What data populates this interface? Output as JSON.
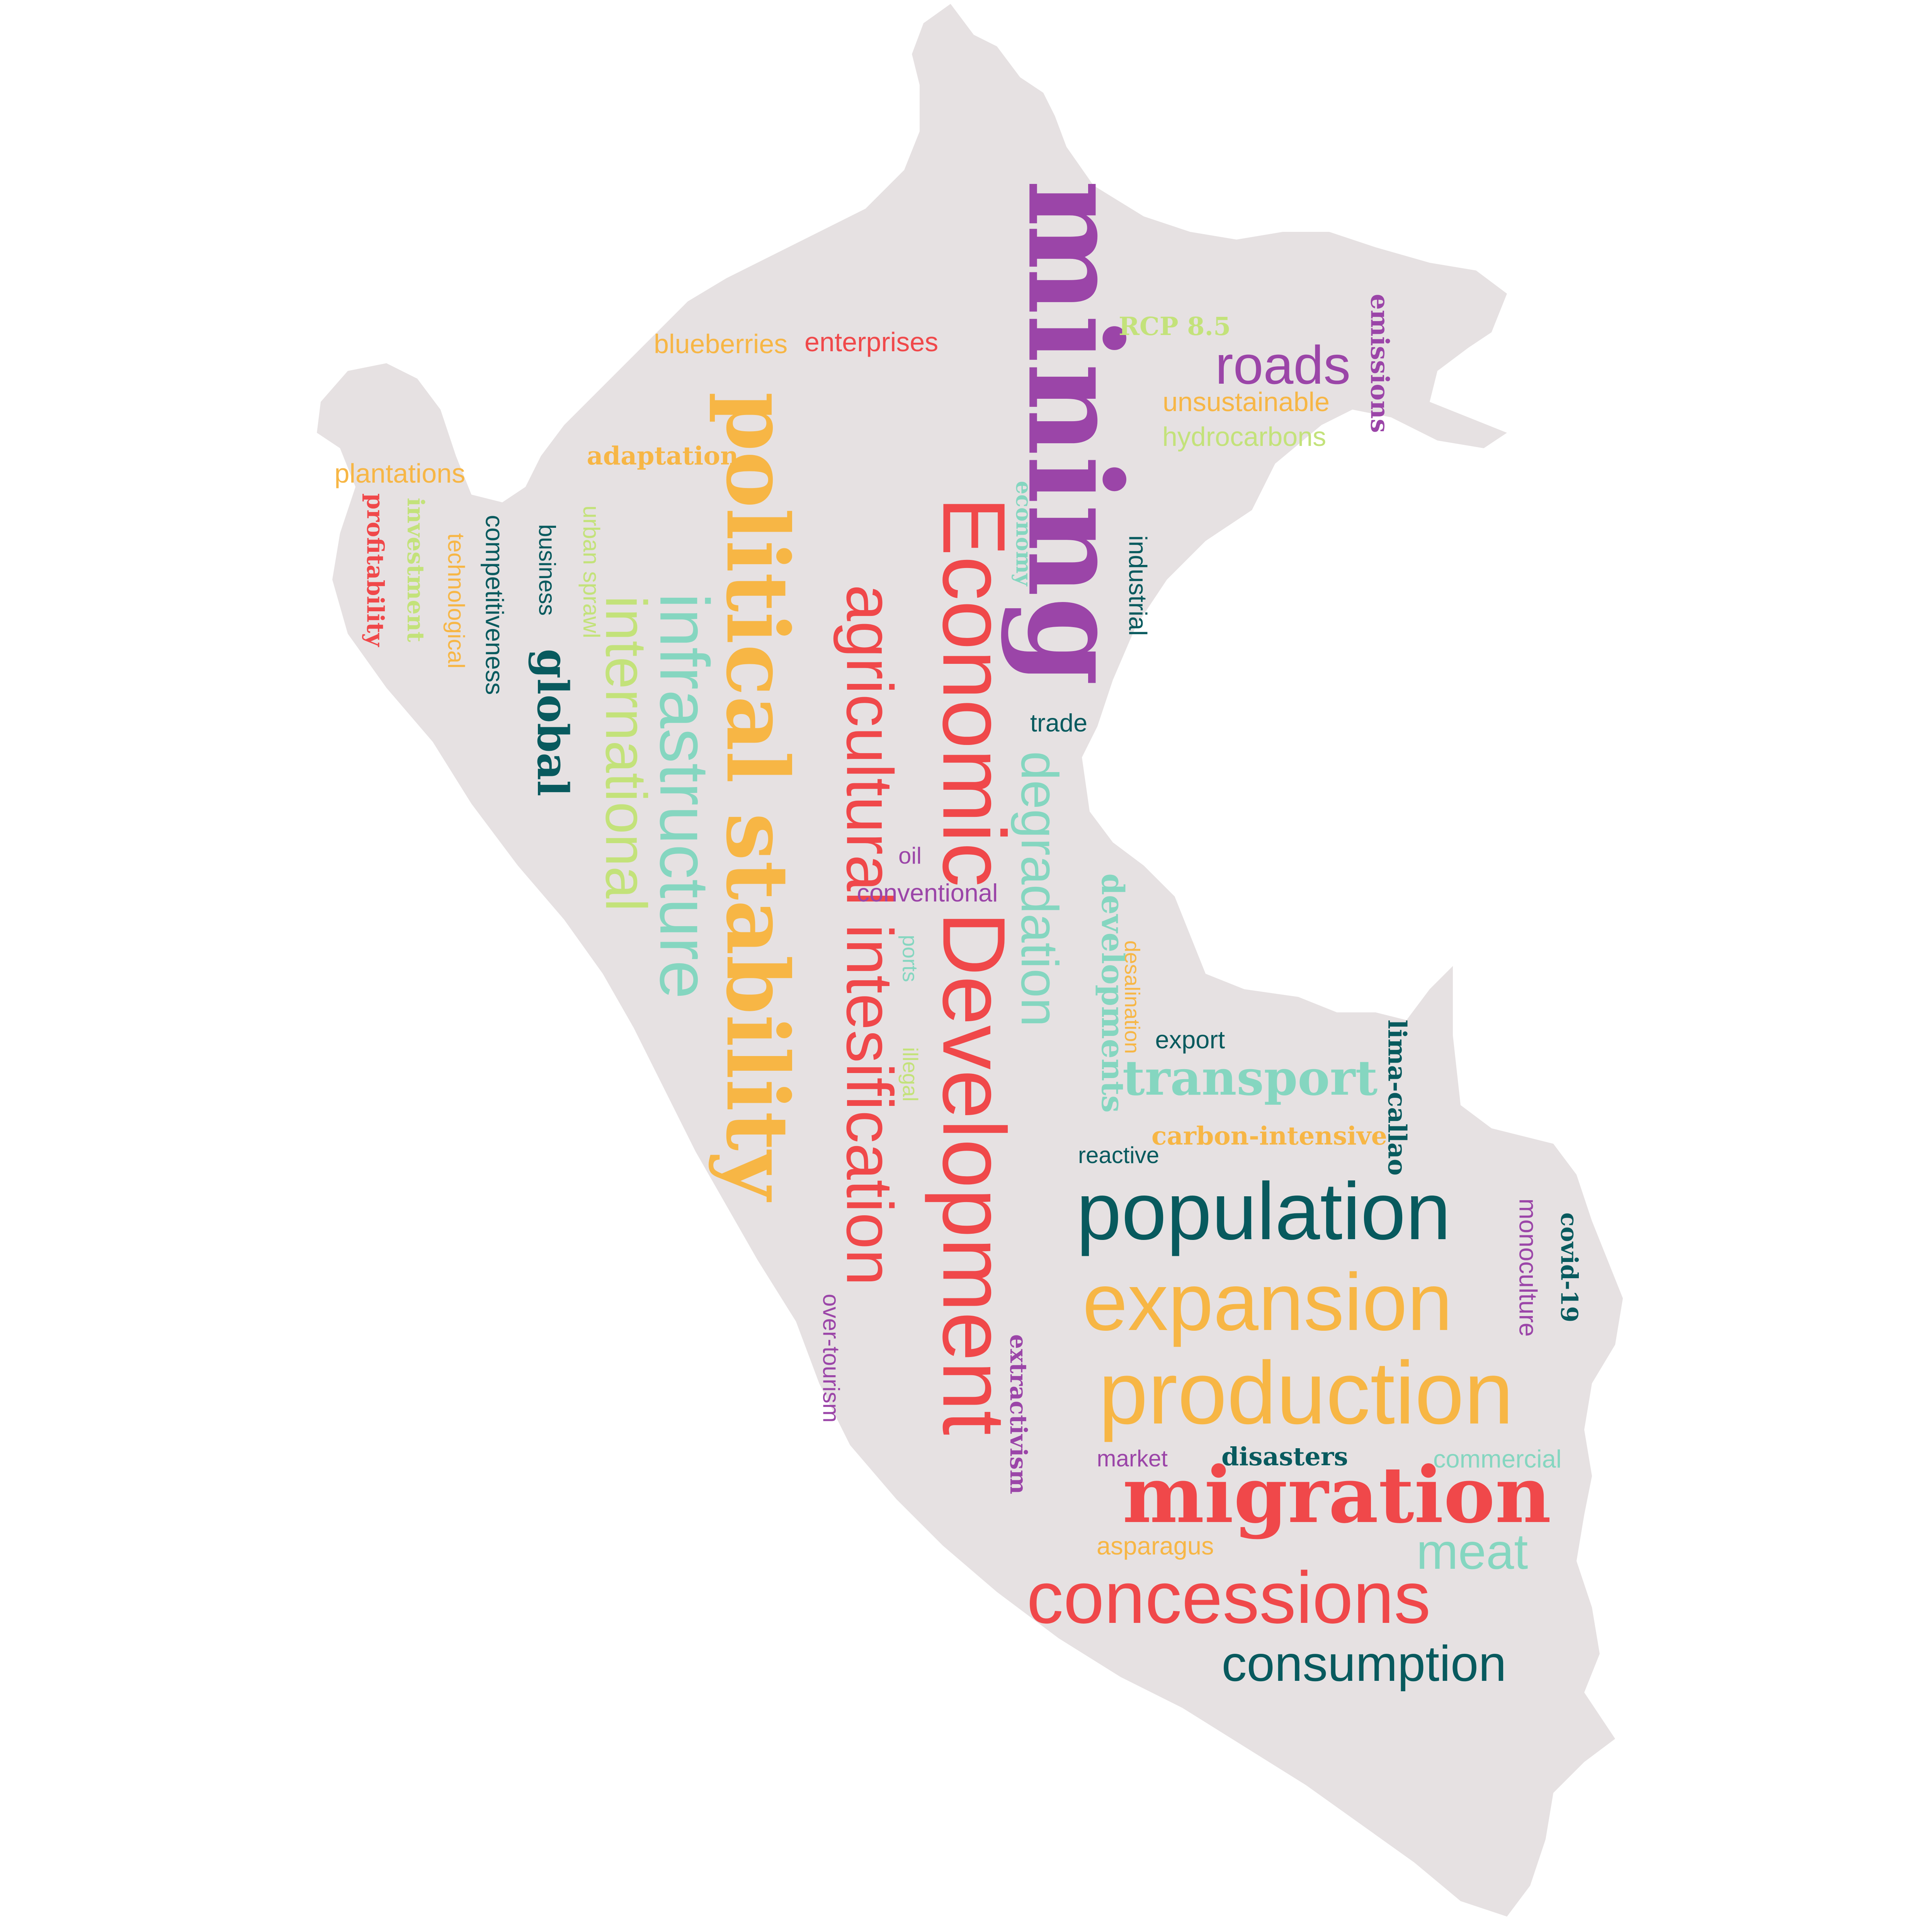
{
  "colors": {
    "background": "#ffffff",
    "map": "#e6e1e2",
    "purple": "#9b45a8",
    "red": "#f0484a",
    "orange": "#f7b645",
    "teal": "#085a5e",
    "mint": "#85d6c0",
    "lime": "#c3e27a"
  },
  "words": [
    {
      "text": "mining",
      "color": "purple",
      "font": "serif",
      "weight": 3
    },
    {
      "text": "Economic Development",
      "color": "red",
      "font": "sans",
      "weight": 2
    },
    {
      "text": "political stability",
      "color": "orange",
      "font": "serif",
      "weight": 2
    },
    {
      "text": "infrastructure",
      "color": "mint",
      "font": "sans",
      "weight": 2
    },
    {
      "text": "agricultural intesification",
      "color": "red",
      "font": "sans",
      "weight": 2
    },
    {
      "text": "international",
      "color": "lime",
      "font": "sans",
      "weight": 2
    },
    {
      "text": "roads",
      "color": "purple",
      "font": "sans",
      "weight": 1
    },
    {
      "text": "degradation",
      "color": "mint",
      "font": "sans",
      "weight": 1
    },
    {
      "text": "developments",
      "color": "mint",
      "font": "serif",
      "weight": 1
    },
    {
      "text": "population",
      "color": "teal",
      "font": "sans",
      "weight": 2
    },
    {
      "text": "expansion",
      "color": "orange",
      "font": "sans",
      "weight": 2
    },
    {
      "text": "production",
      "color": "orange",
      "font": "sans",
      "weight": 2
    },
    {
      "text": "migration",
      "color": "red",
      "font": "serif",
      "weight": 2
    },
    {
      "text": "concessions",
      "color": "red",
      "font": "sans",
      "weight": 2
    },
    {
      "text": "consumption",
      "color": "teal",
      "font": "sans",
      "weight": 1
    },
    {
      "text": "meat",
      "color": "mint",
      "font": "sans",
      "weight": 1
    },
    {
      "text": "transport",
      "color": "mint",
      "font": "serif",
      "weight": 1
    },
    {
      "text": "global",
      "color": "teal",
      "font": "serif",
      "weight": 1
    },
    {
      "text": "blueberries",
      "color": "orange",
      "font": "sans",
      "weight": 1
    },
    {
      "text": "enterprises",
      "color": "red",
      "font": "sans",
      "weight": 1
    },
    {
      "text": "RCP 8.5",
      "color": "lime",
      "font": "serif",
      "weight": 1
    },
    {
      "text": "emissions",
      "color": "purple",
      "font": "serif",
      "weight": 1
    },
    {
      "text": "unsustainable",
      "color": "orange",
      "font": "sans",
      "weight": 1
    },
    {
      "text": "hydrocarbons",
      "color": "lime",
      "font": "sans",
      "weight": 1
    },
    {
      "text": "adaptation",
      "color": "orange",
      "font": "serif",
      "weight": 1
    },
    {
      "text": "plantations",
      "color": "orange",
      "font": "sans",
      "weight": 1
    },
    {
      "text": "profitability",
      "color": "red",
      "font": "serif",
      "weight": 1
    },
    {
      "text": "investment",
      "color": "lime",
      "font": "serif",
      "weight": 1
    },
    {
      "text": "technological",
      "color": "orange",
      "font": "sans",
      "weight": 1
    },
    {
      "text": "competitiveness",
      "color": "teal",
      "font": "sans",
      "weight": 1
    },
    {
      "text": "business",
      "color": "teal",
      "font": "sans",
      "weight": 1
    },
    {
      "text": "urban sprawl",
      "color": "lime",
      "font": "sans",
      "weight": 1
    },
    {
      "text": "economy",
      "color": "mint",
      "font": "serif",
      "weight": 1
    },
    {
      "text": "industrial",
      "color": "teal",
      "font": "sans",
      "weight": 1
    },
    {
      "text": "trade",
      "color": "teal",
      "font": "sans",
      "weight": 1
    },
    {
      "text": "oil",
      "color": "purple",
      "font": "sans",
      "weight": 1
    },
    {
      "text": "conventional",
      "color": "purple",
      "font": "sans",
      "weight": 1
    },
    {
      "text": "ports",
      "color": "mint",
      "font": "sans",
      "weight": 1
    },
    {
      "text": "illegal",
      "color": "lime",
      "font": "sans",
      "weight": 1
    },
    {
      "text": "desalination",
      "color": "orange",
      "font": "sans",
      "weight": 1
    },
    {
      "text": "export",
      "color": "teal",
      "font": "sans",
      "weight": 1
    },
    {
      "text": "lima-callao",
      "color": "teal",
      "font": "serif",
      "weight": 1
    },
    {
      "text": "carbon-intensive",
      "color": "orange",
      "font": "serif",
      "weight": 1
    },
    {
      "text": "reactive",
      "color": "teal",
      "font": "sans",
      "weight": 1
    },
    {
      "text": "monoculture",
      "color": "purple",
      "font": "sans",
      "weight": 1
    },
    {
      "text": "covid-19",
      "color": "teal",
      "font": "serif",
      "weight": 1
    },
    {
      "text": "over-tourism",
      "color": "purple",
      "font": "sans",
      "weight": 1
    },
    {
      "text": "extractivism",
      "color": "purple",
      "font": "serif",
      "weight": 1
    },
    {
      "text": "market",
      "color": "purple",
      "font": "sans",
      "weight": 1
    },
    {
      "text": "disasters",
      "color": "teal",
      "font": "serif",
      "weight": 1
    },
    {
      "text": "commercial",
      "color": "mint",
      "font": "sans",
      "weight": 1
    },
    {
      "text": "asparagus",
      "color": "orange",
      "font": "sans",
      "weight": 1
    }
  ]
}
